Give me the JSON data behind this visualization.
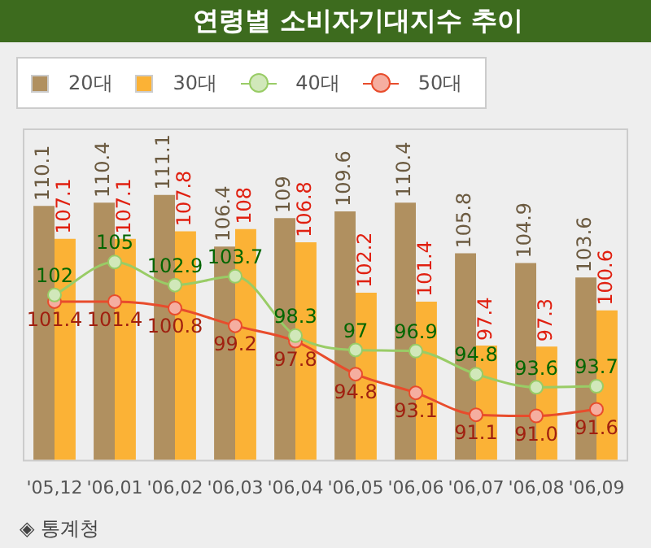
{
  "chart_data": {
    "type": "bar",
    "title": "연령별 소비자기대지수 추이",
    "categories": [
      "'05,12",
      "'06,01",
      "'06,02",
      "'06,03",
      "'06,04",
      "'06,05",
      "'06,06",
      "'06,07",
      "'06,08",
      "'06,09"
    ],
    "series": [
      {
        "name": "20대",
        "color": "#b09060",
        "values": [
          110.1,
          110.4,
          111.1,
          106.4,
          109,
          109.6,
          110.4,
          105.8,
          104.9,
          103.6
        ],
        "value_labels": [
          "110.1",
          "110.4",
          "111.1",
          "106.4",
          "109",
          "109.6",
          "110.4",
          "105.8",
          "104.9",
          "103.6"
        ]
      },
      {
        "name": "30대",
        "color": "#fbb236",
        "values": [
          107.1,
          107.1,
          107.8,
          108,
          106.8,
          102.2,
          101.4,
          97.4,
          97.3,
          100.6
        ],
        "value_labels": [
          "107.1",
          "107.1",
          "107.8",
          "108",
          "106.8",
          "102.2",
          "101.4",
          "97.4",
          "97.3",
          "100.6"
        ]
      },
      {
        "name": "40대",
        "type": "line",
        "color": "#99cc66",
        "values": [
          102,
          105,
          102.9,
          103.7,
          98.3,
          97,
          96.9,
          94.8,
          93.6,
          93.7
        ],
        "value_labels": [
          "102",
          "105",
          "102.9",
          "103.7",
          "98.3",
          "97",
          "96.9",
          "94.8",
          "93.6",
          "93.7"
        ]
      },
      {
        "name": "50대",
        "type": "line",
        "color": "#e84c2c",
        "values": [
          101.4,
          101.4,
          100.8,
          99.2,
          97.8,
          94.8,
          93.1,
          91.1,
          91.0,
          91.6
        ],
        "value_labels": [
          "101.4",
          "101.4",
          "100.8",
          "99.2",
          "97.8",
          "94.8",
          "93.1",
          "91.1",
          "91.0",
          "91.6"
        ]
      }
    ],
    "ylim": [
      87,
      117
    ],
    "tick_labels": "x",
    "legend": "top left",
    "marker": "circle",
    "annotations": [
      "◈ 통계청"
    ]
  }
}
